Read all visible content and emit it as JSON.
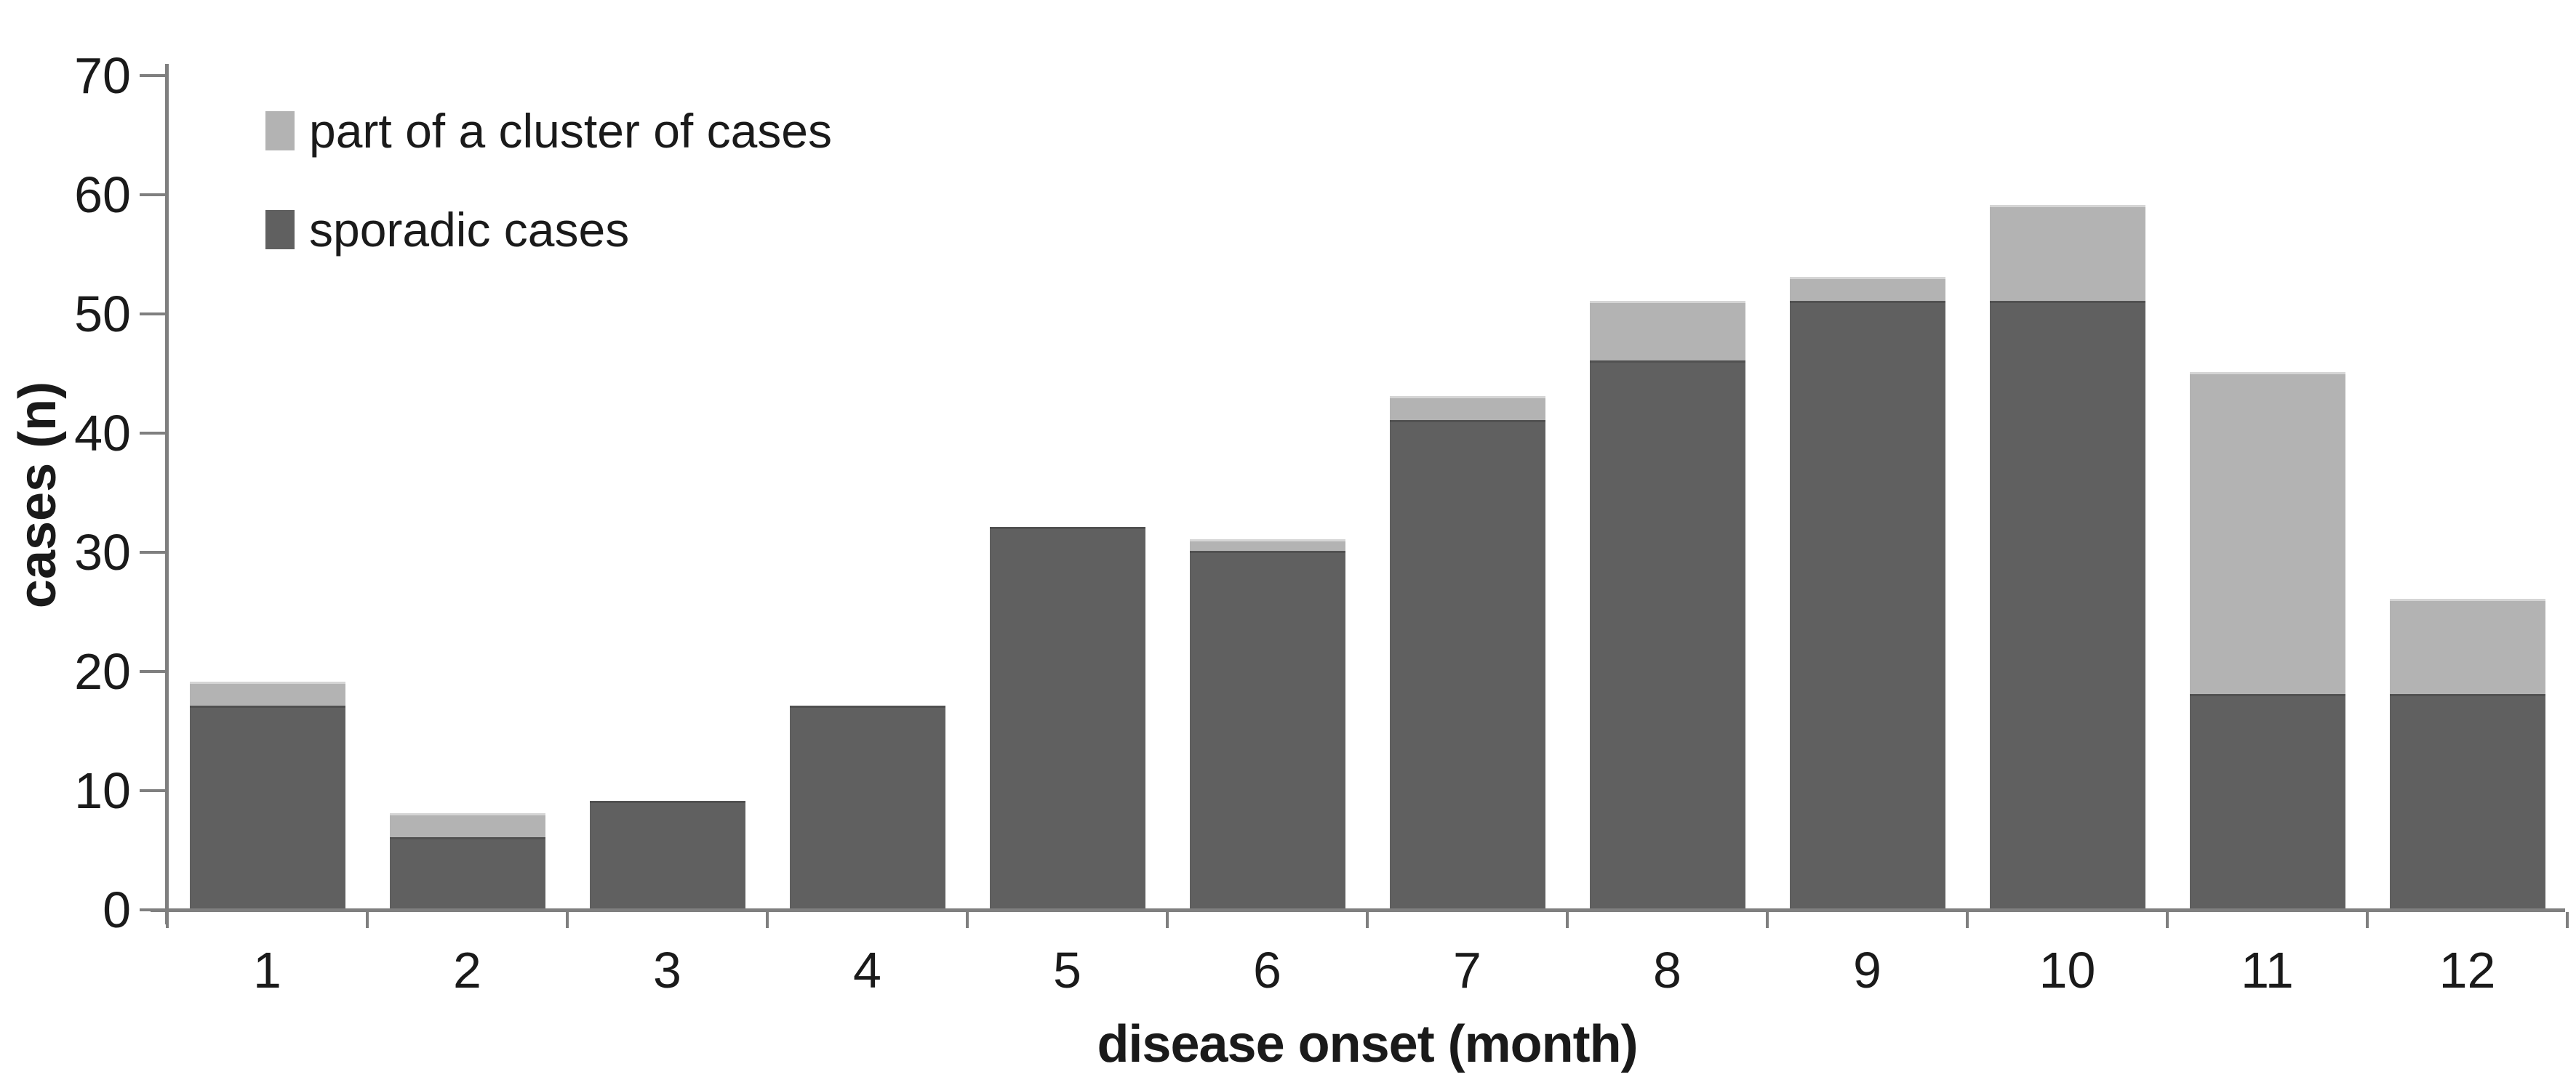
{
  "chart_data": {
    "type": "bar",
    "stacked": true,
    "title": "",
    "xlabel": "disease onset (month)",
    "ylabel": "cases (n)",
    "categories": [
      "1",
      "2",
      "3",
      "4",
      "5",
      "6",
      "7",
      "8",
      "9",
      "10",
      "11",
      "12"
    ],
    "series": [
      {
        "name": "part of a cluster of cases",
        "color": "#b3b3b3",
        "values": [
          2,
          2,
          0,
          0,
          0,
          1,
          2,
          5,
          2,
          8,
          27,
          8
        ]
      },
      {
        "name": "sporadic cases",
        "color": "#606060",
        "values": [
          17,
          6,
          9,
          17,
          32,
          30,
          41,
          46,
          51,
          51,
          18,
          18
        ]
      }
    ],
    "totals": [
      19,
      8,
      9,
      17,
      32,
      31,
      43,
      51,
      53,
      59,
      45,
      26
    ],
    "ylim": [
      0,
      70
    ],
    "ytick_step": 10,
    "yticks": [
      "0",
      "10",
      "20",
      "30",
      "40",
      "50",
      "60",
      "70"
    ],
    "grid": false,
    "legend_position": "top-left-inside",
    "colors": {
      "axis": "#7f7f7f",
      "text": "#1a1a1a",
      "background": "#ffffff",
      "cluster_fill": "#b3b3b3",
      "sporadic_fill": "#606060"
    }
  }
}
